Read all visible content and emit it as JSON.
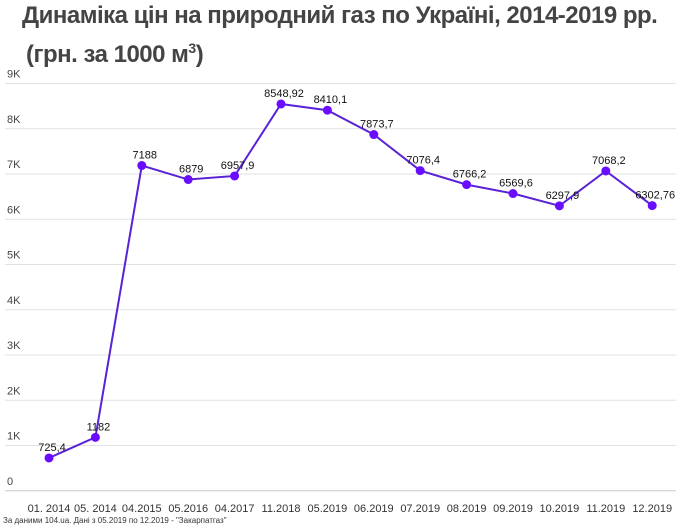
{
  "chart_data": {
    "type": "line",
    "title": "Динаміка цін на природний газ по Україні, 2014-2019 рр.",
    "subtitle_prefix": "(грн. за 1000 м",
    "subtitle_sup": "3",
    "subtitle_suffix": ")",
    "source": "За даними 104.ua. Дані з 05.2019 по 12.2019 - \"Закарпатгаз\"",
    "categories": [
      "01. 2014",
      "05. 2014",
      "04.2015",
      "05.2016",
      "04.2017",
      "11.2018",
      "05.2019",
      "06.2019",
      "07.2019",
      "08.2019",
      "09.2019",
      "10.2019",
      "11.2019",
      "12.2019"
    ],
    "values": [
      725.4,
      1182,
      7188,
      6879,
      6957.9,
      8548.92,
      8410.1,
      7873.7,
      7076.4,
      6766.2,
      6569.6,
      6297.9,
      7068.2,
      6302.76
    ],
    "data_labels": [
      "725,4",
      "1182",
      "7188",
      "6879",
      "6957,9",
      "8548,92",
      "8410,1",
      "7873,7",
      "7076,4",
      "6766,2",
      "6569,6",
      "6297,9",
      "7068,2",
      "6302,76"
    ],
    "yticks": [
      0,
      1000,
      2000,
      3000,
      4000,
      5000,
      6000,
      7000,
      8000,
      9000
    ],
    "ytick_labels": [
      "0",
      "1K",
      "2K",
      "3K",
      "4K",
      "5K",
      "6K",
      "7K",
      "8K",
      "9K"
    ],
    "ylim": [
      0,
      9000
    ],
    "grid": true,
    "line_color": "#5a22d6",
    "marker_color": "#6a0dff"
  }
}
